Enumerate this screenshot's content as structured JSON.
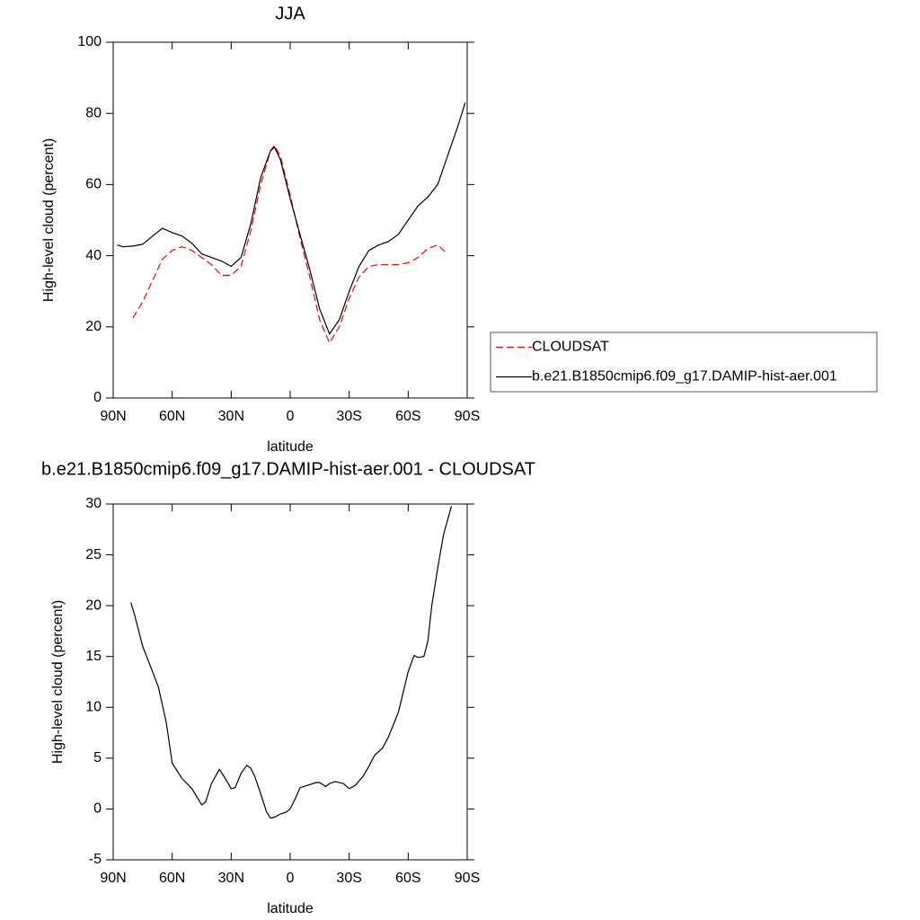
{
  "chart_data": [
    {
      "type": "line",
      "title": "JJA",
      "xlabel": "latitude",
      "ylabel": "High-level cloud (percent)",
      "x": [
        88,
        85,
        80,
        75,
        70,
        65,
        60,
        55,
        50,
        45,
        40,
        35,
        30,
        25,
        20,
        15,
        10,
        8,
        5,
        0,
        -5,
        -10,
        -15,
        -20,
        -25,
        -30,
        -35,
        -40,
        -45,
        -50,
        -55,
        -60,
        -65,
        -70,
        -75,
        -80,
        -85,
        -89
      ],
      "series": [
        {
          "name": "CLOUDSAT",
          "color": "#ff0000",
          "dashed": true,
          "values": [
            null,
            null,
            22.5,
            27,
            33,
            39,
            41.5,
            42.5,
            41.5,
            39.5,
            37.5,
            34.5,
            34.5,
            37,
            47,
            60,
            69.5,
            71,
            68,
            57,
            45,
            34,
            22,
            15.5,
            20,
            28,
            34,
            37,
            37.5,
            37.5,
            37.5,
            38,
            39.5,
            42,
            43,
            40.5,
            null,
            null
          ]
        },
        {
          "name": "b.e21.B1850cmip6.f09_g17.DAMIP-hist-aer.001",
          "color": "#000000",
          "dashed": false,
          "values": [
            43,
            42.5,
            42.7,
            43.2,
            45.5,
            47.7,
            46.5,
            45.5,
            43.5,
            40.5,
            39.5,
            38.5,
            37,
            39.5,
            49,
            62,
            69.5,
            70.5,
            67,
            56,
            46,
            36,
            25,
            18,
            22,
            30,
            37,
            41.5,
            43,
            44,
            46,
            50,
            54,
            56.5,
            60,
            68,
            76,
            83
          ]
        }
      ],
      "xlim": [
        90,
        -90
      ],
      "xticks": [
        {
          "value": 90,
          "label": "90N"
        },
        {
          "value": 60,
          "label": "60N"
        },
        {
          "value": 30,
          "label": "30N"
        },
        0,
        {
          "value": -30,
          "label": "30S"
        },
        {
          "value": -60,
          "label": "60S"
        },
        {
          "value": -90,
          "label": "90S"
        }
      ],
      "ylim": [
        0,
        100
      ],
      "yticks": [
        0,
        20,
        40,
        60,
        80,
        100
      ],
      "grid": false,
      "legend": "right"
    },
    {
      "type": "line",
      "title": "b.e21.B1850cmip6.f09_g17.DAMIP-hist-aer.001 - CLOUDSAT",
      "xlabel": "latitude",
      "ylabel": "High-level cloud (percent)",
      "x": [
        81,
        79,
        75,
        70,
        67,
        63,
        60,
        55,
        50,
        45,
        43,
        40,
        36,
        33,
        30,
        28,
        25,
        22,
        20,
        18,
        15,
        12,
        10,
        8,
        5,
        2,
        0,
        -3,
        -5,
        -10,
        -13,
        -15,
        -18,
        -20,
        -23,
        -27,
        -30,
        -33,
        -37,
        -40,
        -43,
        -47,
        -50,
        -55,
        -60,
        -63,
        -65,
        -68,
        -70,
        -72,
        -75,
        -78,
        -82
      ],
      "values": [
        20.3,
        19,
        16,
        13.5,
        12,
        8.5,
        4.5,
        3,
        2,
        0.4,
        0.7,
        2.5,
        3.9,
        3,
        2,
        2.1,
        3.5,
        4.3,
        4,
        3.2,
        1.5,
        -0.3,
        -0.9,
        -0.8,
        -0.5,
        -0.3,
        0,
        1.2,
        2.1,
        2.4,
        2.6,
        2.6,
        2.2,
        2.5,
        2.7,
        2.5,
        2,
        2.3,
        3.2,
        4.2,
        5.3,
        6,
        7.1,
        9.5,
        13.5,
        15.1,
        14.9,
        15,
        16.5,
        20,
        23.7,
        27,
        29.8
      ],
      "color": "#000000",
      "xlim": [
        90,
        -90
      ],
      "xticks": [
        {
          "value": 90,
          "label": "90N"
        },
        {
          "value": 60,
          "label": "60N"
        },
        {
          "value": 30,
          "label": "30N"
        },
        0,
        {
          "value": -30,
          "label": "30S"
        },
        {
          "value": -60,
          "label": "60S"
        },
        {
          "value": -90,
          "label": "90S"
        }
      ],
      "ylim": [
        -5,
        30
      ],
      "yticks": [
        -5,
        0,
        5,
        10,
        15,
        20,
        25,
        30
      ],
      "grid": false
    }
  ]
}
